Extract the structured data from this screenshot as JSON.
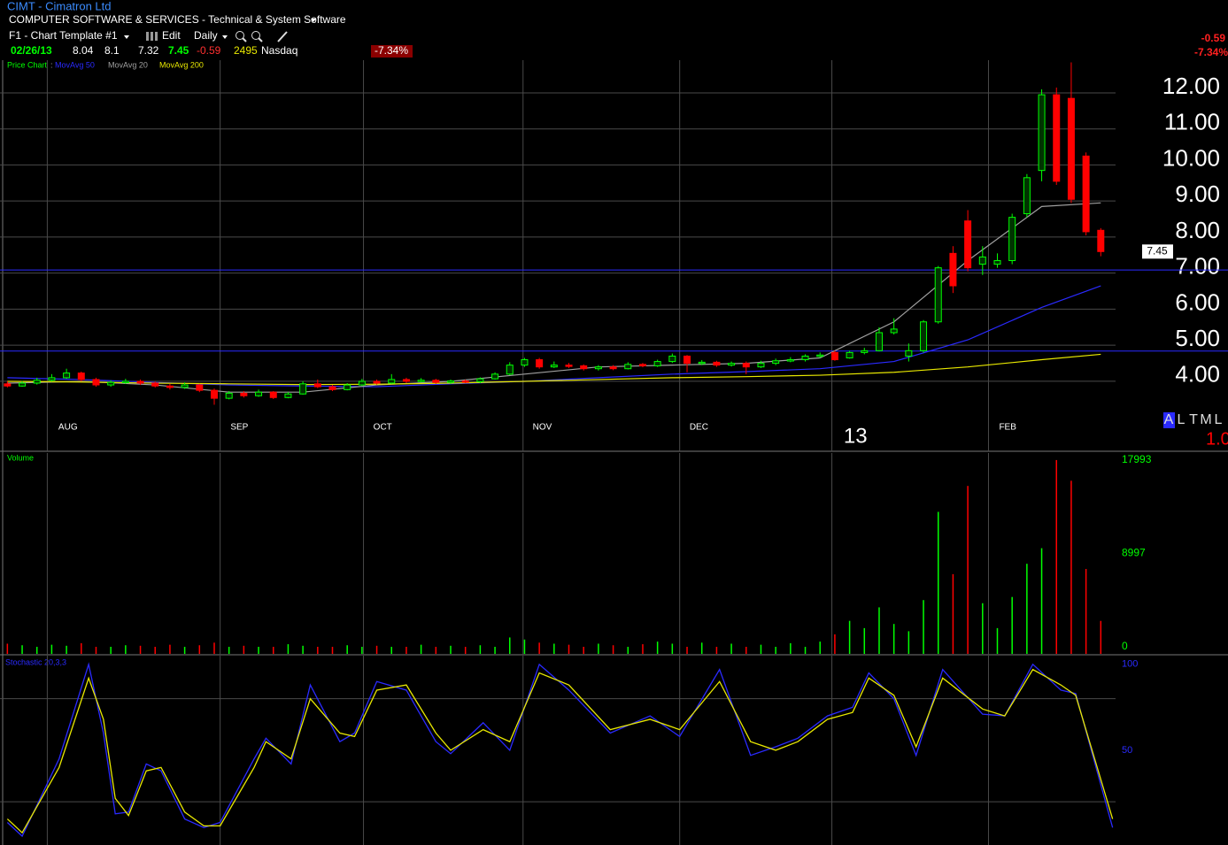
{
  "header": {
    "symbol_line": "CIMT - Cimatron Ltd",
    "industry": "COMPUTER SOFTWARE & SERVICES - Technical & System Software",
    "template": "F1 - Chart Template #1",
    "edit": "Edit",
    "period": "Daily",
    "date": "02/26/13",
    "change": "-0.59",
    "change_pct": "-7.34%",
    "exchange": "Nasdaq"
  },
  "right_panel": {
    "letters": [
      "A",
      "L",
      "T",
      "M",
      "L"
    ],
    "value": "1.0"
  },
  "chart_data": [
    {
      "type": "candlestick",
      "name": "Price Chart",
      "up_color": "#00ff00",
      "down_color": "#ff0000",
      "open": [
        3.78,
        3.72,
        3.8,
        3.88,
        3.95,
        4.08,
        3.9,
        3.75,
        3.82,
        3.85,
        3.8,
        3.72,
        3.68,
        3.75,
        3.6,
        3.38,
        3.52,
        3.45,
        3.55,
        3.4,
        3.5,
        3.78,
        3.7,
        3.62,
        3.75,
        3.85,
        3.8,
        3.9,
        3.85,
        3.88,
        3.82,
        3.86,
        3.84,
        3.92,
        4.05,
        4.3,
        4.45,
        4.25,
        4.3,
        4.28,
        4.2,
        4.25,
        4.2,
        4.32,
        4.28,
        4.4,
        4.55,
        4.35,
        4.38,
        4.3,
        4.35,
        4.25,
        4.35,
        4.42,
        4.45,
        4.55,
        4.65,
        4.5,
        4.65,
        4.7,
        5.2,
        4.55,
        4.7,
        5.5,
        7.4,
        8.3,
        7.1,
        7.1,
        7.2,
        8.5,
        9.7,
        11.8,
        11.7,
        10.1,
        8.04
      ],
      "high": [
        3.85,
        3.86,
        3.95,
        4.05,
        4.2,
        4.12,
        3.95,
        3.88,
        3.92,
        3.9,
        3.84,
        3.78,
        3.82,
        3.78,
        3.65,
        3.58,
        3.58,
        3.62,
        3.58,
        3.55,
        3.85,
        3.9,
        3.75,
        3.8,
        3.92,
        3.9,
        4.05,
        3.95,
        3.94,
        3.92,
        3.9,
        3.9,
        3.96,
        4.1,
        4.38,
        4.5,
        4.5,
        4.4,
        4.36,
        4.32,
        4.3,
        4.3,
        4.38,
        4.36,
        4.45,
        4.62,
        4.58,
        4.44,
        4.42,
        4.4,
        4.4,
        4.42,
        4.48,
        4.52,
        4.6,
        4.65,
        4.7,
        4.7,
        4.78,
        5.35,
        5.6,
        4.9,
        5.55,
        7.05,
        7.6,
        8.6,
        7.6,
        7.4,
        8.5,
        9.6,
        11.95,
        12.0,
        12.7,
        10.2,
        8.1
      ],
      "low": [
        3.68,
        3.7,
        3.76,
        3.84,
        3.92,
        3.85,
        3.7,
        3.7,
        3.78,
        3.75,
        3.68,
        3.62,
        3.64,
        3.55,
        3.2,
        3.35,
        3.4,
        3.42,
        3.36,
        3.38,
        3.48,
        3.66,
        3.58,
        3.6,
        3.72,
        3.76,
        3.78,
        3.8,
        3.82,
        3.78,
        3.78,
        3.8,
        3.8,
        3.9,
        4.02,
        4.25,
        4.2,
        4.22,
        4.22,
        4.15,
        4.15,
        4.16,
        4.18,
        4.24,
        4.25,
        4.36,
        4.1,
        4.3,
        4.25,
        4.26,
        4.05,
        4.22,
        4.3,
        4.38,
        4.4,
        4.5,
        4.42,
        4.48,
        4.6,
        4.68,
        5.15,
        4.4,
        4.65,
        5.45,
        6.3,
        6.9,
        6.8,
        7.0,
        7.1,
        8.4,
        9.4,
        9.3,
        8.8,
        7.9,
        7.32
      ],
      "close": [
        3.72,
        3.8,
        3.88,
        3.95,
        4.08,
        3.9,
        3.75,
        3.82,
        3.85,
        3.8,
        3.72,
        3.68,
        3.75,
        3.6,
        3.38,
        3.52,
        3.45,
        3.55,
        3.4,
        3.5,
        3.78,
        3.7,
        3.62,
        3.75,
        3.85,
        3.8,
        3.9,
        3.85,
        3.88,
        3.82,
        3.86,
        3.84,
        3.92,
        4.05,
        4.3,
        4.45,
        4.25,
        4.3,
        4.28,
        4.2,
        4.25,
        4.2,
        4.32,
        4.28,
        4.4,
        4.55,
        4.35,
        4.38,
        4.3,
        4.35,
        4.25,
        4.35,
        4.42,
        4.45,
        4.55,
        4.58,
        4.45,
        4.65,
        4.7,
        5.2,
        5.3,
        4.7,
        5.5,
        7.0,
        6.5,
        7.0,
        7.3,
        7.2,
        8.4,
        9.5,
        11.8,
        9.4,
        8.9,
        8.0,
        7.45
      ],
      "xlim": [
        -0.5,
        75
      ],
      "xticks": [
        {
          "value": 4.1,
          "label": "AUG"
        },
        {
          "value": 15.7,
          "label": "SEP"
        },
        {
          "value": 25.4,
          "label": "OCT"
        },
        {
          "value": 36.2,
          "label": "NOV"
        },
        {
          "value": 46.8,
          "label": "DEC"
        },
        {
          "value": 57.4,
          "label": "13"
        },
        {
          "value": 67.7,
          "label": "FEB"
        }
      ],
      "xgrid": [
        2.7,
        14.4,
        24.1,
        34.9,
        45.5,
        55.8,
        66.4
      ],
      "ylim": [
        1.91,
        12.76
      ],
      "yticks": [
        {
          "value": 12,
          "label": "12.00"
        },
        {
          "value": 11,
          "label": "11.00"
        },
        {
          "value": 10,
          "label": "10.00"
        },
        {
          "value": 9,
          "label": "9.00"
        },
        {
          "value": 8,
          "label": "8.00"
        },
        {
          "value": 7,
          "label": "7.00"
        },
        {
          "value": 6,
          "label": "6.00"
        },
        {
          "value": 5,
          "label": "5.00"
        },
        {
          "value": 4,
          "label": "4.00"
        }
      ],
      "hlines": [
        6.94,
        4.69
      ],
      "hline_color": "#2a2aff",
      "series": [
        {
          "name": "MovAvg 50",
          "color": "#2a2aff",
          "x": [
            0,
            5,
            10,
            15,
            20,
            25,
            30,
            35,
            40,
            45,
            50,
            55,
            60,
            65,
            70,
            74
          ],
          "values": [
            3.95,
            3.9,
            3.82,
            3.75,
            3.72,
            3.7,
            3.78,
            3.85,
            3.95,
            4.05,
            4.12,
            4.2,
            4.4,
            5.0,
            5.9,
            6.5
          ]
        },
        {
          "name": "MovAvg 20",
          "color": "#a0a0a0",
          "x": [
            0,
            5,
            10,
            15,
            20,
            25,
            30,
            35,
            40,
            45,
            50,
            55,
            60,
            65,
            70,
            74
          ],
          "values": [
            3.8,
            3.85,
            3.75,
            3.55,
            3.55,
            3.75,
            3.85,
            4.05,
            4.25,
            4.3,
            4.35,
            4.5,
            5.5,
            7.2,
            8.7,
            8.8
          ]
        },
        {
          "name": "MovAvg 200",
          "color": "#e8e800",
          "x": [
            0,
            5,
            10,
            15,
            20,
            25,
            30,
            35,
            40,
            45,
            50,
            55,
            60,
            65,
            70,
            74
          ],
          "values": [
            3.85,
            3.83,
            3.8,
            3.78,
            3.76,
            3.77,
            3.8,
            3.85,
            3.9,
            3.95,
            3.98,
            4.02,
            4.1,
            4.25,
            4.45,
            4.6
          ]
        }
      ]
    },
    {
      "type": "bar",
      "name": "Volume",
      "values": [
        300,
        150,
        0,
        200,
        100,
        350,
        0,
        0,
        150,
        100,
        0,
        200,
        0,
        150,
        400,
        0,
        100,
        0,
        0,
        250,
        100,
        0,
        0,
        150,
        0,
        100,
        0,
        0,
        200,
        0,
        100,
        0,
        150,
        0,
        900,
        700,
        400,
        300,
        200,
        0,
        300,
        150,
        0,
        250,
        500,
        300,
        0,
        400,
        0,
        300,
        0,
        200,
        0,
        350,
        0,
        500,
        1200,
        2500,
        1800,
        3800,
        2200,
        1500,
        4500,
        13000,
        7000,
        15500,
        4200,
        1800,
        4800,
        8000,
        9500,
        17993,
        16000,
        7500,
        2495
      ],
      "ylim": [
        0,
        18670
      ],
      "yticks": [
        17993,
        8997,
        0
      ]
    },
    {
      "type": "line",
      "name": "Stochastic 20,3,3",
      "x": [
        0,
        1,
        3.5,
        5.5,
        6.5,
        7.3,
        8.2,
        9.4,
        10.4,
        12,
        13.3,
        14.4,
        16.7,
        17.5,
        19.2,
        20.5,
        22.5,
        23.5,
        25,
        27,
        29,
        30,
        32.2,
        34,
        36,
        38,
        40.8,
        43.5,
        45.5,
        48.2,
        50.3,
        52,
        53.5,
        55.5,
        57.2,
        58.3,
        60,
        61.5,
        63.3,
        66,
        67.5,
        69.4,
        71.3,
        72.3,
        74.8
      ],
      "series": [
        {
          "color": "#2a2aff",
          "values": [
            8,
            0,
            45,
            100,
            60,
            13,
            14,
            42,
            38,
            10,
            5,
            8,
            45,
            57,
            42,
            88,
            55,
            60,
            90,
            85,
            55,
            48,
            66,
            50,
            100,
            85,
            60,
            70,
            58,
            97,
            47,
            52,
            57,
            70,
            75,
            95,
            80,
            47,
            97,
            71,
            70,
            100,
            85,
            83,
            5
          ]
        },
        {
          "color": "#e8e800",
          "values": [
            10,
            2,
            40,
            92,
            68,
            22,
            12,
            38,
            40,
            14,
            6,
            6,
            40,
            55,
            45,
            80,
            60,
            58,
            85,
            88,
            60,
            50,
            62,
            55,
            95,
            88,
            62,
            68,
            62,
            90,
            55,
            50,
            55,
            68,
            72,
            92,
            82,
            52,
            92,
            74,
            70,
            97,
            88,
            82,
            10
          ]
        }
      ],
      "ylim": [
        0,
        103
      ],
      "yticks": [
        100,
        50
      ],
      "hlines": [
        80,
        20
      ]
    }
  ]
}
